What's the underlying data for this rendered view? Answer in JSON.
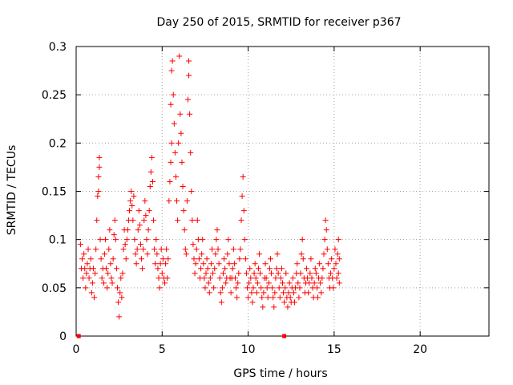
{
  "chart_data": {
    "type": "scatter",
    "title": "Day 250 of 2015, SRMTID for receiver p367",
    "xlabel": "GPS time / hours",
    "ylabel": "SRMTID / TECUs",
    "xlim": [
      0,
      24
    ],
    "ylim": [
      0,
      0.3
    ],
    "x_ticks": [
      0,
      5,
      10,
      15,
      20
    ],
    "x_tick_labels": [
      "0",
      "5",
      "10",
      "15",
      "20"
    ],
    "y_ticks": [
      0,
      0.05,
      0.1,
      0.15,
      0.2,
      0.25,
      0.3
    ],
    "y_tick_labels": [
      "0",
      "0.05",
      "0.1",
      "0.15",
      "0.2",
      "0.25",
      "0.3"
    ],
    "grid": true,
    "marker": "+",
    "color": "#ff0000",
    "outliers": [
      [
        0.15,
        0.0
      ],
      [
        12.1,
        0.0
      ]
    ],
    "series": [
      {
        "name": "SRMTID",
        "points": [
          [
            0.25,
            0.095
          ],
          [
            0.3,
            0.07
          ],
          [
            0.35,
            0.08
          ],
          [
            0.4,
            0.06
          ],
          [
            0.45,
            0.085
          ],
          [
            0.5,
            0.07
          ],
          [
            0.55,
            0.05
          ],
          [
            0.6,
            0.065
          ],
          [
            0.65,
            0.075
          ],
          [
            0.7,
            0.09
          ],
          [
            0.75,
            0.06
          ],
          [
            0.8,
            0.07
          ],
          [
            0.85,
            0.08
          ],
          [
            0.9,
            0.045
          ],
          [
            0.95,
            0.055
          ],
          [
            1.0,
            0.07
          ],
          [
            1.05,
            0.04
          ],
          [
            1.1,
            0.065
          ],
          [
            1.15,
            0.09
          ],
          [
            1.2,
            0.12
          ],
          [
            1.25,
            0.145
          ],
          [
            1.3,
            0.15
          ],
          [
            1.3,
            0.165
          ],
          [
            1.35,
            0.175
          ],
          [
            1.35,
            0.185
          ],
          [
            1.4,
            0.1
          ],
          [
            1.45,
            0.08
          ],
          [
            1.5,
            0.06
          ],
          [
            1.55,
            0.07
          ],
          [
            1.6,
            0.055
          ],
          [
            1.65,
            0.085
          ],
          [
            1.7,
            0.1
          ],
          [
            1.75,
            0.07
          ],
          [
            1.8,
            0.05
          ],
          [
            1.85,
            0.065
          ],
          [
            1.9,
            0.09
          ],
          [
            1.95,
            0.11
          ],
          [
            2.0,
            0.075
          ],
          [
            2.05,
            0.06
          ],
          [
            2.1,
            0.055
          ],
          [
            2.15,
            0.08
          ],
          [
            2.2,
            0.105
          ],
          [
            2.25,
            0.12
          ],
          [
            2.3,
            0.1
          ],
          [
            2.35,
            0.07
          ],
          [
            2.4,
            0.05
          ],
          [
            2.45,
            0.035
          ],
          [
            2.5,
            0.02
          ],
          [
            2.55,
            0.045
          ],
          [
            2.6,
            0.06
          ],
          [
            2.65,
            0.04
          ],
          [
            2.7,
            0.065
          ],
          [
            2.75,
            0.09
          ],
          [
            2.8,
            0.11
          ],
          [
            2.85,
            0.095
          ],
          [
            2.9,
            0.08
          ],
          [
            2.95,
            0.1
          ],
          [
            3.0,
            0.11
          ],
          [
            3.05,
            0.12
          ],
          [
            3.1,
            0.13
          ],
          [
            3.15,
            0.14
          ],
          [
            3.2,
            0.15
          ],
          [
            3.25,
            0.135
          ],
          [
            3.3,
            0.12
          ],
          [
            3.35,
            0.145
          ],
          [
            3.4,
            0.1
          ],
          [
            3.45,
            0.085
          ],
          [
            3.5,
            0.075
          ],
          [
            3.55,
            0.09
          ],
          [
            3.6,
            0.11
          ],
          [
            3.65,
            0.13
          ],
          [
            3.7,
            0.115
          ],
          [
            3.75,
            0.095
          ],
          [
            3.8,
            0.08
          ],
          [
            3.85,
            0.07
          ],
          [
            3.9,
            0.09
          ],
          [
            3.95,
            0.12
          ],
          [
            4.0,
            0.14
          ],
          [
            4.05,
            0.125
          ],
          [
            4.1,
            0.1
          ],
          [
            4.15,
            0.085
          ],
          [
            4.2,
            0.11
          ],
          [
            4.25,
            0.13
          ],
          [
            4.3,
            0.155
          ],
          [
            4.35,
            0.17
          ],
          [
            4.4,
            0.185
          ],
          [
            4.45,
            0.16
          ],
          [
            4.5,
            0.12
          ],
          [
            4.55,
            0.09
          ],
          [
            4.6,
            0.075
          ],
          [
            4.65,
            0.1
          ],
          [
            4.7,
            0.085
          ],
          [
            4.75,
            0.07
          ],
          [
            4.8,
            0.06
          ],
          [
            4.85,
            0.05
          ],
          [
            4.9,
            0.075
          ],
          [
            4.95,
            0.09
          ],
          [
            5.0,
            0.065
          ],
          [
            5.05,
            0.08
          ],
          [
            5.1,
            0.06
          ],
          [
            5.15,
            0.055
          ],
          [
            5.2,
            0.075
          ],
          [
            5.25,
            0.09
          ],
          [
            5.3,
            0.06
          ],
          [
            5.35,
            0.08
          ],
          [
            5.4,
            0.14
          ],
          [
            5.45,
            0.16
          ],
          [
            5.5,
            0.18
          ],
          [
            5.55,
            0.2
          ],
          [
            5.5,
            0.24
          ],
          [
            5.55,
            0.275
          ],
          [
            5.6,
            0.285
          ],
          [
            5.65,
            0.25
          ],
          [
            5.7,
            0.22
          ],
          [
            5.75,
            0.19
          ],
          [
            5.8,
            0.165
          ],
          [
            5.85,
            0.14
          ],
          [
            5.9,
            0.12
          ],
          [
            5.95,
            0.2
          ],
          [
            6.0,
            0.29
          ],
          [
            6.05,
            0.23
          ],
          [
            6.1,
            0.21
          ],
          [
            6.15,
            0.18
          ],
          [
            6.2,
            0.155
          ],
          [
            6.25,
            0.13
          ],
          [
            6.3,
            0.11
          ],
          [
            6.35,
            0.09
          ],
          [
            6.4,
            0.085
          ],
          [
            6.45,
            0.14
          ],
          [
            6.5,
            0.245
          ],
          [
            6.55,
            0.27
          ],
          [
            6.55,
            0.285
          ],
          [
            6.6,
            0.23
          ],
          [
            6.65,
            0.19
          ],
          [
            6.7,
            0.15
          ],
          [
            6.75,
            0.12
          ],
          [
            6.8,
            0.095
          ],
          [
            6.85,
            0.08
          ],
          [
            6.9,
            0.065
          ],
          [
            6.95,
            0.075
          ],
          [
            7.0,
            0.09
          ],
          [
            7.05,
            0.12
          ],
          [
            7.1,
            0.1
          ],
          [
            7.15,
            0.08
          ],
          [
            7.2,
            0.06
          ],
          [
            7.25,
            0.07
          ],
          [
            7.3,
            0.085
          ],
          [
            7.35,
            0.1
          ],
          [
            7.4,
            0.075
          ],
          [
            7.45,
            0.06
          ],
          [
            7.5,
            0.05
          ],
          [
            7.55,
            0.065
          ],
          [
            7.6,
            0.08
          ],
          [
            7.65,
            0.07
          ],
          [
            7.7,
            0.055
          ],
          [
            7.75,
            0.045
          ],
          [
            7.8,
            0.06
          ],
          [
            7.85,
            0.075
          ],
          [
            7.9,
            0.09
          ],
          [
            7.95,
            0.065
          ],
          [
            8.0,
            0.05
          ],
          [
            8.05,
            0.07
          ],
          [
            8.1,
            0.085
          ],
          [
            8.15,
            0.1
          ],
          [
            8.2,
            0.11
          ],
          [
            8.25,
            0.09
          ],
          [
            8.3,
            0.075
          ],
          [
            8.35,
            0.06
          ],
          [
            8.4,
            0.045
          ],
          [
            8.45,
            0.035
          ],
          [
            8.5,
            0.05
          ],
          [
            8.55,
            0.065
          ],
          [
            8.6,
            0.08
          ],
          [
            8.65,
            0.07
          ],
          [
            8.7,
            0.055
          ],
          [
            8.75,
            0.06
          ],
          [
            8.8,
            0.085
          ],
          [
            8.85,
            0.1
          ],
          [
            8.9,
            0.075
          ],
          [
            8.95,
            0.06
          ],
          [
            9.0,
            0.045
          ],
          [
            9.05,
            0.06
          ],
          [
            9.1,
            0.07
          ],
          [
            9.15,
            0.09
          ],
          [
            9.2,
            0.075
          ],
          [
            9.25,
            0.06
          ],
          [
            9.3,
            0.05
          ],
          [
            9.35,
            0.04
          ],
          [
            9.4,
            0.055
          ],
          [
            9.45,
            0.065
          ],
          [
            9.5,
            0.08
          ],
          [
            9.55,
            0.09
          ],
          [
            9.6,
            0.12
          ],
          [
            9.65,
            0.145
          ],
          [
            9.7,
            0.165
          ],
          [
            9.75,
            0.13
          ],
          [
            9.8,
            0.1
          ],
          [
            9.85,
            0.08
          ],
          [
            9.9,
            0.065
          ],
          [
            9.95,
            0.05
          ],
          [
            10.0,
            0.04
          ],
          [
            10.05,
            0.055
          ],
          [
            10.1,
            0.07
          ],
          [
            10.15,
            0.06
          ],
          [
            10.2,
            0.045
          ],
          [
            10.25,
            0.035
          ],
          [
            10.3,
            0.05
          ],
          [
            10.35,
            0.065
          ],
          [
            10.4,
            0.075
          ],
          [
            10.45,
            0.06
          ],
          [
            10.5,
            0.045
          ],
          [
            10.55,
            0.055
          ],
          [
            10.6,
            0.07
          ],
          [
            10.65,
            0.085
          ],
          [
            10.7,
            0.065
          ],
          [
            10.75,
            0.05
          ],
          [
            10.8,
            0.04
          ],
          [
            10.85,
            0.03
          ],
          [
            10.9,
            0.045
          ],
          [
            10.95,
            0.06
          ],
          [
            11.0,
            0.075
          ],
          [
            11.05,
            0.06
          ],
          [
            11.1,
            0.05
          ],
          [
            11.15,
            0.04
          ],
          [
            11.2,
            0.055
          ],
          [
            11.25,
            0.07
          ],
          [
            11.3,
            0.08
          ],
          [
            11.35,
            0.065
          ],
          [
            11.4,
            0.05
          ],
          [
            11.45,
            0.04
          ],
          [
            11.5,
            0.03
          ],
          [
            11.55,
            0.045
          ],
          [
            11.6,
            0.06
          ],
          [
            11.65,
            0.07
          ],
          [
            11.7,
            0.085
          ],
          [
            11.75,
            0.065
          ],
          [
            11.8,
            0.05
          ],
          [
            11.85,
            0.04
          ],
          [
            11.9,
            0.06
          ],
          [
            11.95,
            0.07
          ],
          [
            12.0,
            0.055
          ],
          [
            12.05,
            0.045
          ],
          [
            12.1,
            0.035
          ],
          [
            12.15,
            0.05
          ],
          [
            12.2,
            0.065
          ],
          [
            12.25,
            0.04
          ],
          [
            12.3,
            0.03
          ],
          [
            12.35,
            0.045
          ],
          [
            12.4,
            0.055
          ],
          [
            12.45,
            0.04
          ],
          [
            12.5,
            0.035
          ],
          [
            12.55,
            0.05
          ],
          [
            12.6,
            0.06
          ],
          [
            12.65,
            0.045
          ],
          [
            12.7,
            0.035
          ],
          [
            12.75,
            0.05
          ],
          [
            12.8,
            0.065
          ],
          [
            12.85,
            0.075
          ],
          [
            12.9,
            0.055
          ],
          [
            12.95,
            0.04
          ],
          [
            13.0,
            0.05
          ],
          [
            13.05,
            0.065
          ],
          [
            13.1,
            0.085
          ],
          [
            13.15,
            0.1
          ],
          [
            13.2,
            0.08
          ],
          [
            13.25,
            0.06
          ],
          [
            13.3,
            0.045
          ],
          [
            13.35,
            0.055
          ],
          [
            13.4,
            0.07
          ],
          [
            13.45,
            0.06
          ],
          [
            13.5,
            0.045
          ],
          [
            13.55,
            0.055
          ],
          [
            13.6,
            0.065
          ],
          [
            13.65,
            0.08
          ],
          [
            13.7,
            0.06
          ],
          [
            13.75,
            0.05
          ],
          [
            13.8,
            0.04
          ],
          [
            13.85,
            0.055
          ],
          [
            13.9,
            0.07
          ],
          [
            13.95,
            0.065
          ],
          [
            14.0,
            0.05
          ],
          [
            14.05,
            0.04
          ],
          [
            14.1,
            0.06
          ],
          [
            14.15,
            0.075
          ],
          [
            14.2,
            0.055
          ],
          [
            14.25,
            0.045
          ],
          [
            14.3,
            0.06
          ],
          [
            14.35,
            0.07
          ],
          [
            14.4,
            0.085
          ],
          [
            14.45,
            0.1
          ],
          [
            14.5,
            0.12
          ],
          [
            14.55,
            0.11
          ],
          [
            14.6,
            0.09
          ],
          [
            14.65,
            0.075
          ],
          [
            14.7,
            0.06
          ],
          [
            14.75,
            0.05
          ],
          [
            14.8,
            0.065
          ],
          [
            14.85,
            0.08
          ],
          [
            14.9,
            0.06
          ],
          [
            14.95,
            0.05
          ],
          [
            15.0,
            0.07
          ],
          [
            15.05,
            0.09
          ],
          [
            15.1,
            0.075
          ],
          [
            15.15,
            0.06
          ],
          [
            15.2,
            0.085
          ],
          [
            15.25,
            0.1
          ],
          [
            15.25,
            0.065
          ],
          [
            15.3,
            0.08
          ],
          [
            15.3,
            0.055
          ]
        ]
      }
    ]
  }
}
